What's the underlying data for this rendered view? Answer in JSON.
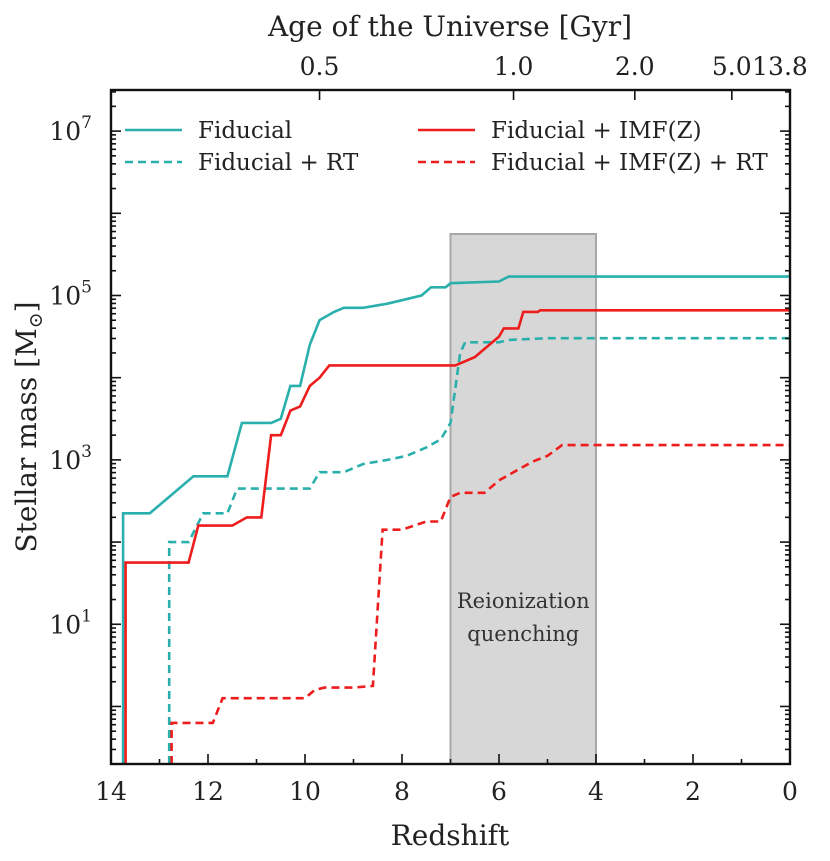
{
  "chart_data": {
    "type": "line",
    "xlabel": "Redshift",
    "ylabel": "Stellar mass [M",
    "ylabel_subscript": "⊙",
    "ylabel_close": "]",
    "top_axis_title": "Age of the Universe [Gyr]",
    "xlim": [
      14,
      0
    ],
    "ylim_log10": [
      -0.7,
      7.5
    ],
    "yscale": "log",
    "x_ticks": [
      14,
      12,
      10,
      8,
      6,
      4,
      2,
      0
    ],
    "x_tick_labels": [
      "14",
      "12",
      "10",
      "8",
      "6",
      "4",
      "2",
      "0"
    ],
    "y_ticks_log10": [
      1,
      3,
      5,
      7
    ],
    "y_tick_bases": [
      "10",
      "10",
      "10",
      "10"
    ],
    "y_tick_exponents": [
      "1",
      "3",
      "5",
      "7"
    ],
    "top_ticks_redshift": [
      9.7,
      5.7,
      3.2,
      1.2,
      0.0
    ],
    "top_tick_labels": [
      "0.5",
      "1.0",
      "2.0",
      "5.0",
      "13.8"
    ],
    "shaded_region": {
      "z_from": 7.0,
      "z_to": 4.0,
      "label_line1": "Reionization",
      "label_line2": "quenching"
    },
    "series": [
      {
        "name": "Fiducial",
        "color": "#2ab0ac",
        "dash": "solid",
        "points": [
          [
            13.75,
            -1.5
          ],
          [
            13.75,
            2.35
          ],
          [
            13.2,
            2.35
          ],
          [
            12.9,
            2.5
          ],
          [
            12.6,
            2.65
          ],
          [
            12.3,
            2.8
          ],
          [
            11.6,
            2.8
          ],
          [
            11.3,
            3.45
          ],
          [
            10.7,
            3.45
          ],
          [
            10.5,
            3.5
          ],
          [
            10.3,
            3.9
          ],
          [
            10.1,
            3.9
          ],
          [
            9.9,
            4.4
          ],
          [
            9.7,
            4.7
          ],
          [
            9.4,
            4.8
          ],
          [
            9.2,
            4.85
          ],
          [
            8.8,
            4.85
          ],
          [
            8.3,
            4.9
          ],
          [
            7.6,
            5.0
          ],
          [
            7.4,
            5.1
          ],
          [
            7.1,
            5.1
          ],
          [
            7.0,
            5.15
          ],
          [
            6.0,
            5.17
          ],
          [
            5.8,
            5.23
          ],
          [
            0.0,
            5.23
          ]
        ]
      },
      {
        "name": "Fiducial + RT",
        "color": "#2ab0ac",
        "dash": "dashed",
        "points": [
          [
            12.8,
            -1.5
          ],
          [
            12.8,
            2.0
          ],
          [
            12.4,
            2.0
          ],
          [
            12.1,
            2.35
          ],
          [
            11.6,
            2.35
          ],
          [
            11.4,
            2.65
          ],
          [
            9.9,
            2.65
          ],
          [
            9.7,
            2.85
          ],
          [
            9.2,
            2.85
          ],
          [
            8.8,
            2.95
          ],
          [
            8.3,
            3.0
          ],
          [
            7.9,
            3.05
          ],
          [
            7.5,
            3.15
          ],
          [
            7.2,
            3.25
          ],
          [
            7.0,
            3.45
          ],
          [
            6.8,
            4.3
          ],
          [
            6.7,
            4.43
          ],
          [
            6.0,
            4.43
          ],
          [
            5.8,
            4.46
          ],
          [
            5.0,
            4.48
          ],
          [
            0.0,
            4.48
          ]
        ]
      },
      {
        "name": "Fiducial + IMF(Z)",
        "color": "#ee1d1d",
        "dash": "solid",
        "points": [
          [
            13.7,
            -1.5
          ],
          [
            13.7,
            1.75
          ],
          [
            12.4,
            1.75
          ],
          [
            12.2,
            2.2
          ],
          [
            11.5,
            2.2
          ],
          [
            11.2,
            2.3
          ],
          [
            10.9,
            2.3
          ],
          [
            10.7,
            3.3
          ],
          [
            10.5,
            3.3
          ],
          [
            10.3,
            3.6
          ],
          [
            10.1,
            3.65
          ],
          [
            9.9,
            3.9
          ],
          [
            9.7,
            4.0
          ],
          [
            9.5,
            4.15
          ],
          [
            6.9,
            4.15
          ],
          [
            6.5,
            4.25
          ],
          [
            6.3,
            4.35
          ],
          [
            6.0,
            4.5
          ],
          [
            5.9,
            4.6
          ],
          [
            5.6,
            4.6
          ],
          [
            5.5,
            4.8
          ],
          [
            5.2,
            4.8
          ],
          [
            5.15,
            4.82
          ],
          [
            0.0,
            4.82
          ]
        ]
      },
      {
        "name": "Fiducial + IMF(Z) + RT",
        "color": "#ee1d1d",
        "dash": "dashed",
        "points": [
          [
            12.75,
            -1.5
          ],
          [
            12.75,
            -0.2
          ],
          [
            11.9,
            -0.2
          ],
          [
            11.7,
            0.1
          ],
          [
            10.0,
            0.1
          ],
          [
            9.8,
            0.2
          ],
          [
            9.6,
            0.23
          ],
          [
            9.0,
            0.23
          ],
          [
            8.6,
            0.25
          ],
          [
            8.4,
            2.15
          ],
          [
            8.0,
            2.15
          ],
          [
            7.5,
            2.25
          ],
          [
            7.2,
            2.25
          ],
          [
            7.0,
            2.55
          ],
          [
            6.8,
            2.6
          ],
          [
            6.3,
            2.6
          ],
          [
            6.0,
            2.75
          ],
          [
            5.7,
            2.85
          ],
          [
            5.3,
            2.98
          ],
          [
            5.0,
            3.05
          ],
          [
            4.7,
            3.18
          ],
          [
            0.0,
            3.18
          ]
        ]
      }
    ],
    "legend": {
      "placement": "top",
      "order": [
        "Fiducial",
        "Fiducial + RT",
        "Fiducial + IMF(Z)",
        "Fiducial + IMF(Z) + RT"
      ]
    }
  }
}
